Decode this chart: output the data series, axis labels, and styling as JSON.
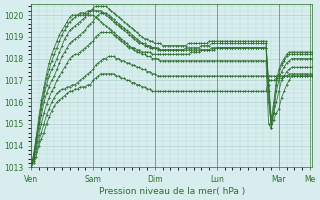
{
  "background_color": "#d8eeee",
  "plot_bg_color": "#d8eeee",
  "grid_color": "#aacccc",
  "line_color": "#2d6e2d",
  "marker_color": "#2d6e2d",
  "ylim": [
    1013,
    1020.5
  ],
  "yticks": [
    1013,
    1014,
    1015,
    1016,
    1017,
    1018,
    1019,
    1020
  ],
  "xlabel": "Pression niveau de la mer( hPa )",
  "xlabel_color": "#2d6e2d",
  "tick_color": "#2d6e2d",
  "day_labels": [
    "Ven",
    "Sam",
    "Dim",
    "Lun",
    "Mar",
    "Me"
  ],
  "day_positions": [
    0,
    24,
    48,
    72,
    96,
    108
  ],
  "num_steps": 110,
  "series": [
    [
      1013.0,
      1013.2,
      1013.5,
      1014.0,
      1014.3,
      1014.6,
      1015.0,
      1015.3,
      1015.6,
      1015.8,
      1016.0,
      1016.1,
      1016.2,
      1016.3,
      1016.4,
      1016.5,
      1016.5,
      1016.6,
      1016.6,
      1016.7,
      1016.7,
      1016.7,
      1016.8,
      1016.8,
      1017.0,
      1017.1,
      1017.2,
      1017.3,
      1017.3,
      1017.3,
      1017.3,
      1017.3,
      1017.3,
      1017.2,
      1017.2,
      1017.1,
      1017.1,
      1017.0,
      1017.0,
      1016.9,
      1016.9,
      1016.8,
      1016.8,
      1016.7,
      1016.7,
      1016.6,
      1016.6,
      1016.5,
      1016.5,
      1016.5,
      1016.5,
      1016.5,
      1016.5,
      1016.5,
      1016.5,
      1016.5,
      1016.5,
      1016.5,
      1016.5,
      1016.5,
      1016.5,
      1016.5,
      1016.5,
      1016.5,
      1016.5,
      1016.5,
      1016.5,
      1016.5,
      1016.5,
      1016.5,
      1016.5,
      1016.5,
      1016.5,
      1016.5,
      1016.5,
      1016.5,
      1016.5,
      1016.5,
      1016.5,
      1016.5,
      1016.5,
      1016.5,
      1016.5,
      1016.5,
      1016.5,
      1016.5,
      1016.5,
      1016.5,
      1016.5,
      1016.5,
      1016.5,
      1016.5,
      1017.0,
      1017.0,
      1017.0,
      1017.1,
      1017.1,
      1017.1,
      1017.2,
      1017.2,
      1017.2,
      1017.2,
      1017.2,
      1017.2,
      1017.2,
      1017.2,
      1017.2,
      1017.2,
      1017.2,
      1017.2
    ],
    [
      1013.0,
      1013.3,
      1013.7,
      1014.2,
      1014.6,
      1015.0,
      1015.4,
      1015.7,
      1016.0,
      1016.2,
      1016.4,
      1016.5,
      1016.6,
      1016.6,
      1016.7,
      1016.7,
      1016.8,
      1016.8,
      1016.9,
      1017.0,
      1017.1,
      1017.2,
      1017.3,
      1017.4,
      1017.5,
      1017.7,
      1017.8,
      1017.9,
      1018.0,
      1018.0,
      1018.1,
      1018.1,
      1018.1,
      1018.0,
      1018.0,
      1017.9,
      1017.9,
      1017.8,
      1017.8,
      1017.7,
      1017.7,
      1017.6,
      1017.6,
      1017.5,
      1017.5,
      1017.4,
      1017.4,
      1017.3,
      1017.3,
      1017.2,
      1017.2,
      1017.2,
      1017.2,
      1017.2,
      1017.2,
      1017.2,
      1017.2,
      1017.2,
      1017.2,
      1017.2,
      1017.2,
      1017.2,
      1017.2,
      1017.2,
      1017.2,
      1017.2,
      1017.2,
      1017.2,
      1017.2,
      1017.2,
      1017.2,
      1017.2,
      1017.2,
      1017.2,
      1017.2,
      1017.2,
      1017.2,
      1017.2,
      1017.2,
      1017.2,
      1017.2,
      1017.2,
      1017.2,
      1017.2,
      1017.2,
      1017.2,
      1017.2,
      1017.2,
      1017.2,
      1017.2,
      1017.2,
      1017.2,
      1017.2,
      1017.2,
      1017.2,
      1017.2,
      1017.2,
      1017.2,
      1017.2,
      1017.2,
      1017.3,
      1017.3,
      1017.3,
      1017.3,
      1017.3,
      1017.3,
      1017.3,
      1017.3,
      1017.3,
      1017.3
    ],
    [
      1013.0,
      1013.4,
      1013.9,
      1014.5,
      1015.0,
      1015.5,
      1015.9,
      1016.2,
      1016.5,
      1016.7,
      1017.0,
      1017.2,
      1017.4,
      1017.6,
      1017.8,
      1018.0,
      1018.1,
      1018.2,
      1018.2,
      1018.3,
      1018.4,
      1018.5,
      1018.6,
      1018.7,
      1018.8,
      1019.0,
      1019.1,
      1019.2,
      1019.2,
      1019.2,
      1019.2,
      1019.2,
      1019.1,
      1019.0,
      1018.9,
      1018.8,
      1018.7,
      1018.6,
      1018.5,
      1018.5,
      1018.4,
      1018.3,
      1018.3,
      1018.2,
      1018.2,
      1018.1,
      1018.1,
      1018.0,
      1018.0,
      1018.0,
      1017.9,
      1017.9,
      1017.9,
      1017.9,
      1017.9,
      1017.9,
      1017.9,
      1017.9,
      1017.9,
      1017.9,
      1017.9,
      1017.9,
      1017.9,
      1017.9,
      1017.9,
      1017.9,
      1017.9,
      1017.9,
      1017.9,
      1017.9,
      1017.9,
      1017.9,
      1017.9,
      1017.9,
      1017.9,
      1017.9,
      1017.9,
      1017.9,
      1017.9,
      1017.9,
      1017.9,
      1017.9,
      1017.9,
      1017.9,
      1017.9,
      1017.9,
      1017.9,
      1017.9,
      1017.9,
      1017.9,
      1017.9,
      1017.9,
      1015.0,
      1014.8,
      1015.2,
      1015.5,
      1015.7,
      1016.2,
      1016.5,
      1016.8,
      1017.0,
      1017.2,
      1017.2,
      1017.2,
      1017.2,
      1017.2,
      1017.2,
      1017.2,
      1017.2,
      1017.2
    ],
    [
      1013.0,
      1013.5,
      1014.1,
      1014.8,
      1015.4,
      1016.0,
      1016.4,
      1016.7,
      1017.0,
      1017.2,
      1017.5,
      1017.8,
      1018.1,
      1018.3,
      1018.5,
      1018.7,
      1018.8,
      1018.9,
      1019.0,
      1019.1,
      1019.2,
      1019.3,
      1019.5,
      1019.6,
      1019.7,
      1019.9,
      1020.0,
      1020.1,
      1020.1,
      1020.1,
      1020.0,
      1019.9,
      1019.8,
      1019.7,
      1019.6,
      1019.5,
      1019.4,
      1019.3,
      1019.2,
      1019.1,
      1019.0,
      1018.9,
      1018.8,
      1018.7,
      1018.7,
      1018.6,
      1018.6,
      1018.5,
      1018.5,
      1018.5,
      1018.4,
      1018.4,
      1018.4,
      1018.4,
      1018.4,
      1018.4,
      1018.4,
      1018.4,
      1018.4,
      1018.4,
      1018.4,
      1018.4,
      1018.4,
      1018.4,
      1018.4,
      1018.4,
      1018.4,
      1018.4,
      1018.4,
      1018.4,
      1018.5,
      1018.5,
      1018.5,
      1018.5,
      1018.5,
      1018.5,
      1018.5,
      1018.5,
      1018.5,
      1018.5,
      1018.5,
      1018.5,
      1018.5,
      1018.5,
      1018.5,
      1018.5,
      1018.5,
      1018.5,
      1018.5,
      1018.5,
      1018.5,
      1018.5,
      1016.0,
      1015.0,
      1015.5,
      1016.0,
      1016.5,
      1017.0,
      1017.2,
      1017.4,
      1017.5,
      1017.6,
      1017.6,
      1017.6,
      1017.6,
      1017.6,
      1017.6,
      1017.6,
      1017.6,
      1017.6
    ],
    [
      1013.0,
      1013.5,
      1014.2,
      1015.0,
      1015.7,
      1016.3,
      1016.8,
      1017.2,
      1017.5,
      1017.7,
      1018.0,
      1018.3,
      1018.6,
      1018.9,
      1019.1,
      1019.3,
      1019.4,
      1019.5,
      1019.6,
      1019.7,
      1019.8,
      1019.9,
      1020.1,
      1020.2,
      1020.3,
      1020.4,
      1020.4,
      1020.4,
      1020.4,
      1020.4,
      1020.3,
      1020.2,
      1020.1,
      1020.0,
      1019.9,
      1019.8,
      1019.7,
      1019.6,
      1019.5,
      1019.4,
      1019.3,
      1019.2,
      1019.1,
      1019.0,
      1018.9,
      1018.9,
      1018.8,
      1018.8,
      1018.7,
      1018.7,
      1018.7,
      1018.6,
      1018.6,
      1018.6,
      1018.6,
      1018.6,
      1018.6,
      1018.6,
      1018.6,
      1018.6,
      1018.6,
      1018.7,
      1018.7,
      1018.7,
      1018.7,
      1018.7,
      1018.7,
      1018.7,
      1018.7,
      1018.8,
      1018.8,
      1018.8,
      1018.8,
      1018.8,
      1018.8,
      1018.8,
      1018.8,
      1018.8,
      1018.8,
      1018.8,
      1018.8,
      1018.8,
      1018.8,
      1018.8,
      1018.8,
      1018.8,
      1018.8,
      1018.8,
      1018.8,
      1018.8,
      1018.8,
      1018.8,
      1016.5,
      1014.8,
      1015.5,
      1016.5,
      1017.0,
      1017.4,
      1017.6,
      1017.8,
      1017.9,
      1018.0,
      1018.0,
      1018.0,
      1018.0,
      1018.0,
      1018.0,
      1018.0,
      1018.0,
      1018.0
    ],
    [
      1013.0,
      1013.6,
      1014.3,
      1015.1,
      1015.9,
      1016.5,
      1017.1,
      1017.5,
      1017.9,
      1018.2,
      1018.5,
      1018.8,
      1019.1,
      1019.3,
      1019.5,
      1019.7,
      1019.8,
      1019.9,
      1020.0,
      1020.1,
      1020.1,
      1020.1,
      1020.2,
      1020.2,
      1020.2,
      1020.2,
      1020.2,
      1020.2,
      1020.1,
      1020.0,
      1019.9,
      1019.8,
      1019.7,
      1019.6,
      1019.5,
      1019.4,
      1019.3,
      1019.2,
      1019.1,
      1019.0,
      1018.9,
      1018.8,
      1018.7,
      1018.7,
      1018.6,
      1018.6,
      1018.5,
      1018.5,
      1018.5,
      1018.4,
      1018.4,
      1018.4,
      1018.4,
      1018.4,
      1018.4,
      1018.4,
      1018.4,
      1018.4,
      1018.4,
      1018.4,
      1018.5,
      1018.5,
      1018.5,
      1018.5,
      1018.5,
      1018.5,
      1018.6,
      1018.6,
      1018.6,
      1018.6,
      1018.7,
      1018.7,
      1018.7,
      1018.7,
      1018.7,
      1018.7,
      1018.7,
      1018.7,
      1018.7,
      1018.7,
      1018.7,
      1018.7,
      1018.7,
      1018.7,
      1018.7,
      1018.7,
      1018.7,
      1018.7,
      1018.7,
      1018.7,
      1018.7,
      1018.7,
      1016.8,
      1015.0,
      1015.8,
      1016.8,
      1017.3,
      1017.7,
      1017.9,
      1018.1,
      1018.2,
      1018.2,
      1018.2,
      1018.2,
      1018.2,
      1018.2,
      1018.2,
      1018.2,
      1018.2,
      1018.2
    ],
    [
      1013.0,
      1013.6,
      1014.4,
      1015.3,
      1016.1,
      1016.7,
      1017.3,
      1017.8,
      1018.2,
      1018.5,
      1018.8,
      1019.1,
      1019.3,
      1019.5,
      1019.7,
      1019.9,
      1020.0,
      1020.0,
      1020.0,
      1020.0,
      1020.0,
      1020.0,
      1020.0,
      1020.0,
      1020.0,
      1019.9,
      1019.8,
      1019.7,
      1019.6,
      1019.5,
      1019.4,
      1019.3,
      1019.2,
      1019.1,
      1019.0,
      1018.9,
      1018.8,
      1018.7,
      1018.6,
      1018.5,
      1018.5,
      1018.4,
      1018.4,
      1018.3,
      1018.3,
      1018.3,
      1018.3,
      1018.2,
      1018.2,
      1018.2,
      1018.2,
      1018.2,
      1018.2,
      1018.2,
      1018.2,
      1018.2,
      1018.2,
      1018.2,
      1018.2,
      1018.2,
      1018.2,
      1018.2,
      1018.3,
      1018.3,
      1018.3,
      1018.3,
      1018.4,
      1018.4,
      1018.4,
      1018.4,
      1018.4,
      1018.4,
      1018.5,
      1018.5,
      1018.5,
      1018.5,
      1018.5,
      1018.5,
      1018.5,
      1018.5,
      1018.5,
      1018.5,
      1018.5,
      1018.5,
      1018.5,
      1018.5,
      1018.5,
      1018.5,
      1018.5,
      1018.5,
      1018.5,
      1018.5,
      1017.0,
      1015.2,
      1016.0,
      1017.0,
      1017.5,
      1017.8,
      1018.0,
      1018.2,
      1018.3,
      1018.3,
      1018.3,
      1018.3,
      1018.3,
      1018.3,
      1018.3,
      1018.3,
      1018.3,
      1018.3
    ]
  ]
}
